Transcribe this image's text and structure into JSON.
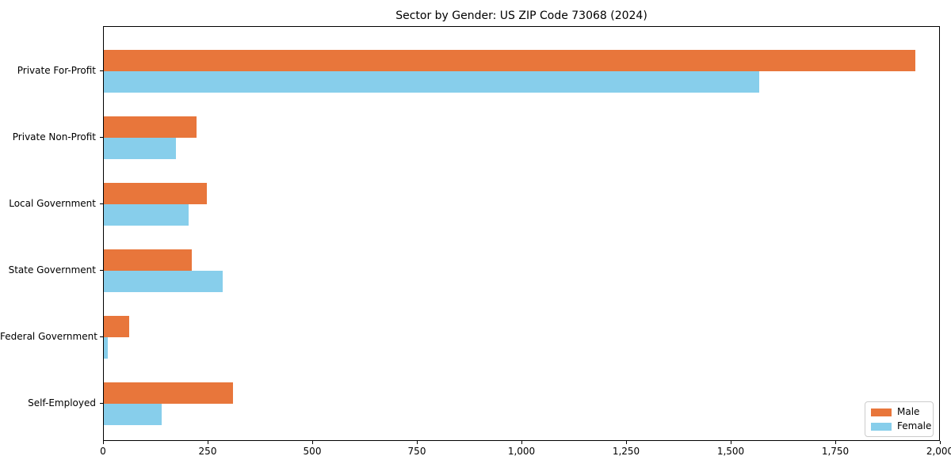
{
  "title": "Sector by Gender: US ZIP Code 73068 (2024)",
  "colors": {
    "male": "#e8763b",
    "female": "#87ceeb",
    "axis": "#000000",
    "background": "#ffffff",
    "legend_border": "#cccccc"
  },
  "chart_data": {
    "type": "bar",
    "orientation": "horizontal",
    "title": "Sector by Gender: US ZIP Code 73068 (2024)",
    "xlabel": "",
    "ylabel": "",
    "categories": [
      "Private For-Profit",
      "Private Non-Profit",
      "Local Government",
      "State Government",
      "Federal Government",
      "Self-Employed"
    ],
    "series": [
      {
        "name": "Male",
        "color": "#e8763b",
        "values": [
          1939,
          221,
          246,
          211,
          60,
          309
        ]
      },
      {
        "name": "Female",
        "color": "#87ceeb",
        "values": [
          1566,
          172,
          203,
          284,
          10,
          139
        ]
      }
    ],
    "xlim": [
      0,
      2000
    ],
    "xticks": [
      0,
      250,
      500,
      750,
      1000,
      1250,
      1500,
      1750,
      2000
    ],
    "xtick_labels": [
      "0",
      "250",
      "500",
      "750",
      "1,000",
      "1,250",
      "1,500",
      "1,750",
      "2,000"
    ],
    "grid": false,
    "legend_position": "lower right",
    "legend_entries": [
      "Male",
      "Female"
    ]
  }
}
